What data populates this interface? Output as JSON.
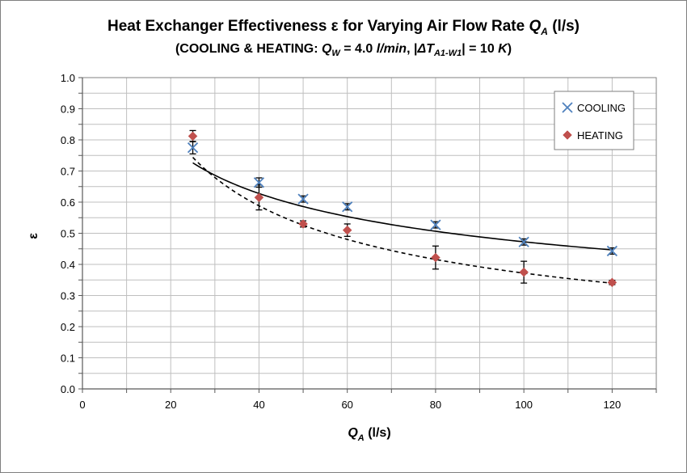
{
  "chart_data": {
    "type": "scatter",
    "title": {
      "pre": "Heat Exchanger Effectiveness ε for Varying Air Flow Rate ",
      "q": "Q",
      "q_sub": "A",
      "units": " (l/s)"
    },
    "subtitle": {
      "pre": "(COOLING & HEATING: ",
      "q": "Q",
      "q_sub": "W",
      "mid": " = 4.0 ",
      "unit_it": "l/min",
      "mid2": ",  |",
      "dt": "ΔT",
      "dt_sub": "A1-W1",
      "post": "| = 10 ",
      "k": "K",
      "close": ")"
    },
    "xlabel": {
      "q": "Q",
      "sub": "A",
      "units": " (l/s)"
    },
    "ylabel": "ε",
    "xlim": [
      0,
      130
    ],
    "ylim": [
      0,
      1.0
    ],
    "x_ticks": [
      "0",
      "20",
      "40",
      "60",
      "80",
      "100",
      "120"
    ],
    "x_tick_values": [
      0,
      20,
      40,
      60,
      80,
      100,
      120
    ],
    "y_ticks": [
      "0.0",
      "0.1",
      "0.2",
      "0.3",
      "0.4",
      "0.5",
      "0.6",
      "0.7",
      "0.8",
      "0.9",
      "1.0"
    ],
    "y_tick_values": [
      0,
      0.1,
      0.2,
      0.3,
      0.4,
      0.5,
      0.6,
      0.7,
      0.8,
      0.9,
      1.0
    ],
    "x_minor_step": 10,
    "y_minor_step": 0.05,
    "grid": true,
    "legend_position": "top-right",
    "series": [
      {
        "name": "COOLING",
        "marker": "x",
        "color": "#4f81bd",
        "x": [
          25,
          40,
          50,
          60,
          80,
          100,
          120
        ],
        "y": [
          0.775,
          0.663,
          0.61,
          0.585,
          0.527,
          0.472,
          0.443
        ],
        "err": [
          0.02,
          0.015,
          0.01,
          0.01,
          0.01,
          0.01,
          0.01
        ],
        "trend": {
          "style": "solid",
          "color": "#000000",
          "a": 1.97,
          "b": -0.31
        }
      },
      {
        "name": "HEATING",
        "marker": "diamond",
        "color": "#c0504d",
        "x": [
          25,
          40,
          50,
          60,
          80,
          100,
          120
        ],
        "y": [
          0.812,
          0.615,
          0.53,
          0.51,
          0.422,
          0.375,
          0.342
        ],
        "err": [
          0.018,
          0.04,
          0.01,
          0.02,
          0.037,
          0.035,
          0.007
        ],
        "trend": {
          "style": "dashed",
          "color": "#000000",
          "a": 3.72,
          "b": -0.5
        }
      }
    ]
  }
}
